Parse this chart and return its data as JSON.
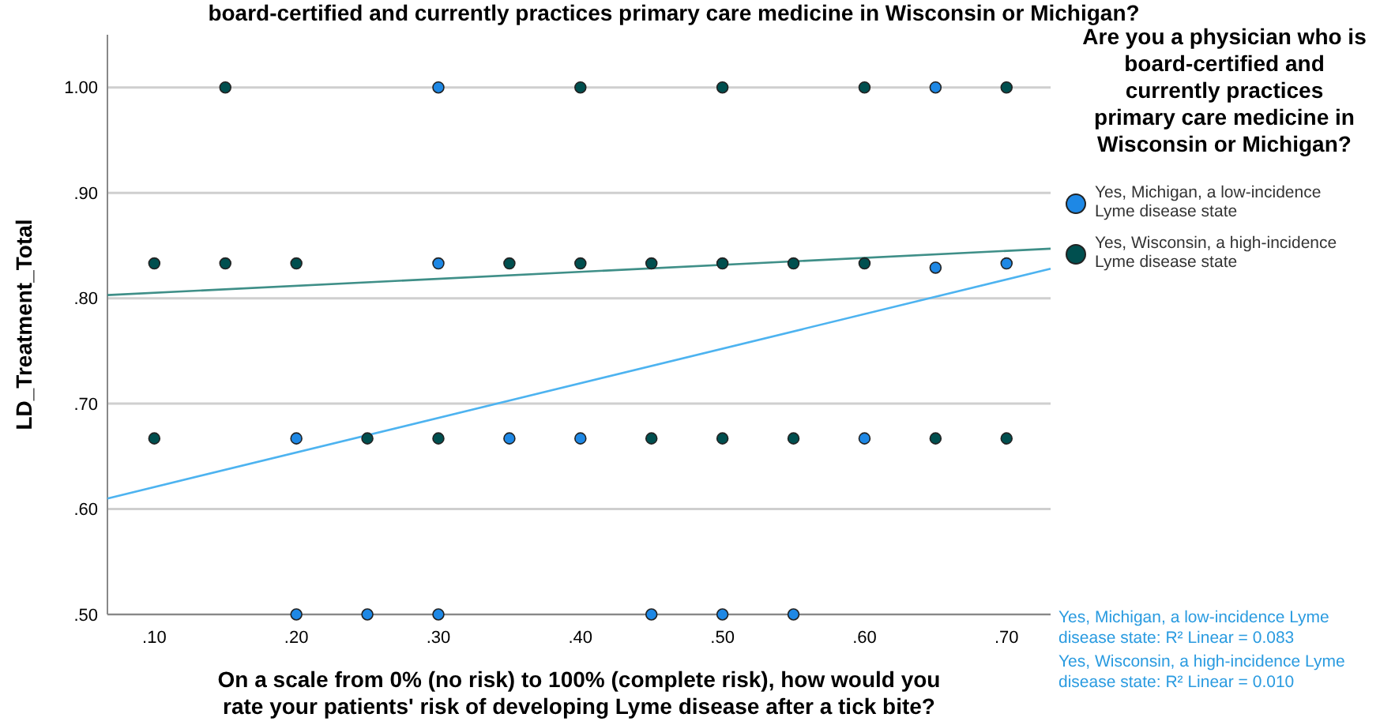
{
  "chart_data": {
    "type": "scatter",
    "title": "board-certified and currently practices primary care medicine in Wisconsin or Michigan?",
    "xlabel": "On a scale from 0% (no risk) to 100% (complete risk), how would you rate your patients' risk of developing Lyme disease after a tick bite?",
    "ylabel": "LD_Treatment_Total",
    "legend_title": "Are you a physician who is board-certified and currently practices primary care medicine in Wisconsin or Michigan?",
    "legend": "right",
    "grid": "y",
    "marker": "circle",
    "xlim": [
      0.067,
      0.731
    ],
    "ylim": [
      0.5,
      1.05
    ],
    "xticks": [
      {
        "value": 0.1,
        "label": ".10"
      },
      {
        "value": 0.2,
        "label": ".20"
      },
      {
        "value": 0.3,
        "label": ".30"
      },
      {
        "value": 0.4,
        "label": ".40"
      },
      {
        "value": 0.5,
        "label": ".50"
      },
      {
        "value": 0.6,
        "label": ".60"
      },
      {
        "value": 0.7,
        "label": ".70"
      }
    ],
    "yticks": [
      {
        "value": 0.5,
        "label": ".50"
      },
      {
        "value": 0.6,
        "label": ".60"
      },
      {
        "value": 0.7,
        "label": ".70"
      },
      {
        "value": 0.8,
        "label": ".80"
      },
      {
        "value": 0.9,
        "label": ".90"
      },
      {
        "value": 1.0,
        "label": "1.00"
      }
    ],
    "series": [
      {
        "name": "Yes, Michigan, a low-incidence Lyme disease state",
        "color": "#1e88e5",
        "x": [
          0.3,
          0.65,
          0.3,
          0.65,
          0.7,
          0.2,
          0.35,
          0.4,
          0.6,
          0.2,
          0.25,
          0.3,
          0.45,
          0.5,
          0.55
        ],
        "values": [
          1.0,
          1.0,
          0.833,
          0.829,
          0.833,
          0.667,
          0.667,
          0.667,
          0.667,
          0.5,
          0.5,
          0.5,
          0.5,
          0.5,
          0.5
        ]
      },
      {
        "name": "Yes, Wisconsin, a high-incidence Lyme disease state",
        "color": "#004f4f",
        "x": [
          0.15,
          0.4,
          0.5,
          0.6,
          0.7,
          0.1,
          0.15,
          0.2,
          0.35,
          0.4,
          0.45,
          0.5,
          0.55,
          0.6,
          0.1,
          0.25,
          0.3,
          0.45,
          0.5,
          0.55,
          0.65,
          0.7
        ],
        "values": [
          1.0,
          1.0,
          1.0,
          1.0,
          1.0,
          0.833,
          0.833,
          0.833,
          0.833,
          0.833,
          0.833,
          0.833,
          0.833,
          0.833,
          0.667,
          0.667,
          0.667,
          0.667,
          0.667,
          0.667,
          0.667,
          0.667
        ]
      },
      {
        "type": "line",
        "marker": "none",
        "color": "#4db3f0",
        "x": [
          0.067,
          0.731
        ],
        "values": [
          0.61,
          0.828
        ]
      },
      {
        "type": "line",
        "marker": "none",
        "color": "#3f8f88",
        "x": [
          0.067,
          0.731
        ],
        "values": [
          0.803,
          0.847
        ]
      }
    ],
    "annotations": [
      "Yes, Michigan, a low-incidence Lyme disease state: R² Linear = 0.083",
      "Yes, Wisconsin, a high-incidence Lyme disease state: R² Linear = 0.010"
    ]
  }
}
